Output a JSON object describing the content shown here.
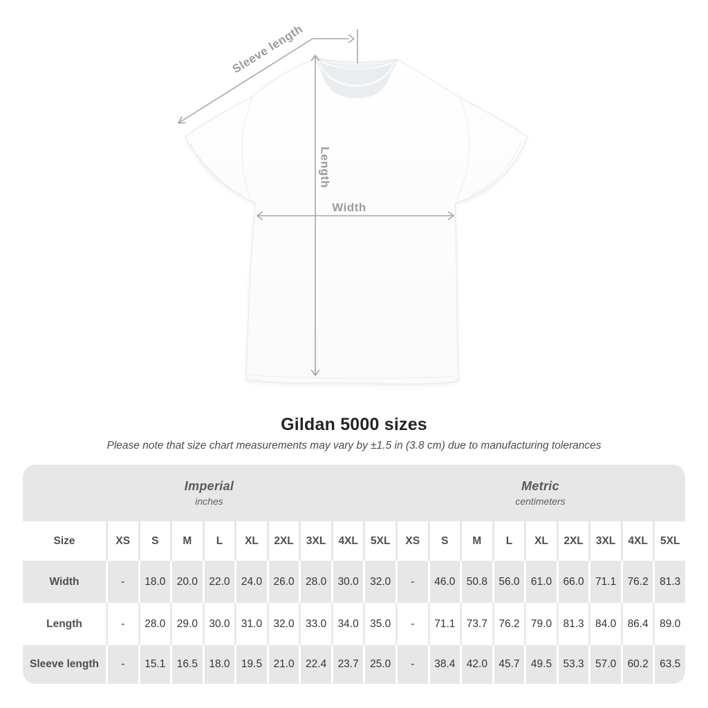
{
  "figure": {
    "sleeve_length_label": "Sleeve length",
    "length_label": "Length",
    "width_label": "Width"
  },
  "heading": {
    "title": "Gildan 5000 sizes",
    "subtitle": "Please note that size chart measurements may vary by ±1.5 in (3.8 cm) due to manufacturing tolerances"
  },
  "size_table": {
    "size_header": "Size",
    "groups": [
      {
        "name": "Imperial",
        "unit": "inches"
      },
      {
        "name": "Metric",
        "unit": "centimeters"
      }
    ],
    "sizes": [
      "XS",
      "S",
      "M",
      "L",
      "XL",
      "2XL",
      "3XL",
      "4XL",
      "5XL"
    ],
    "rows": [
      {
        "label": "Width",
        "imperial": [
          "-",
          "18.0",
          "20.0",
          "22.0",
          "24.0",
          "26.0",
          "28.0",
          "30.0",
          "32.0"
        ],
        "metric": [
          "-",
          "46.0",
          "50.8",
          "56.0",
          "61.0",
          "66.0",
          "71.1",
          "76.2",
          "81.3"
        ]
      },
      {
        "label": "Length",
        "imperial": [
          "-",
          "28.0",
          "29.0",
          "30.0",
          "31.0",
          "32.0",
          "33.0",
          "34.0",
          "35.0"
        ],
        "metric": [
          "-",
          "71.1",
          "73.7",
          "76.2",
          "79.0",
          "81.3",
          "84.0",
          "86.4",
          "89.0"
        ]
      },
      {
        "label": "Sleeve length",
        "imperial": [
          "-",
          "15.1",
          "16.5",
          "18.0",
          "19.5",
          "21.0",
          "22.4",
          "23.7",
          "25.0"
        ],
        "metric": [
          "-",
          "38.4",
          "42.0",
          "45.7",
          "49.5",
          "53.3",
          "57.0",
          "60.2",
          "63.5"
        ]
      }
    ]
  },
  "colors": {
    "row_gray": "#e7e7e7",
    "annotation_gray": "#a6a6a6",
    "figure_label_gray": "#9b9b9b",
    "title_color": "#242424",
    "table_value_text": "#333333",
    "table_header_text": "#4e4e4e"
  }
}
